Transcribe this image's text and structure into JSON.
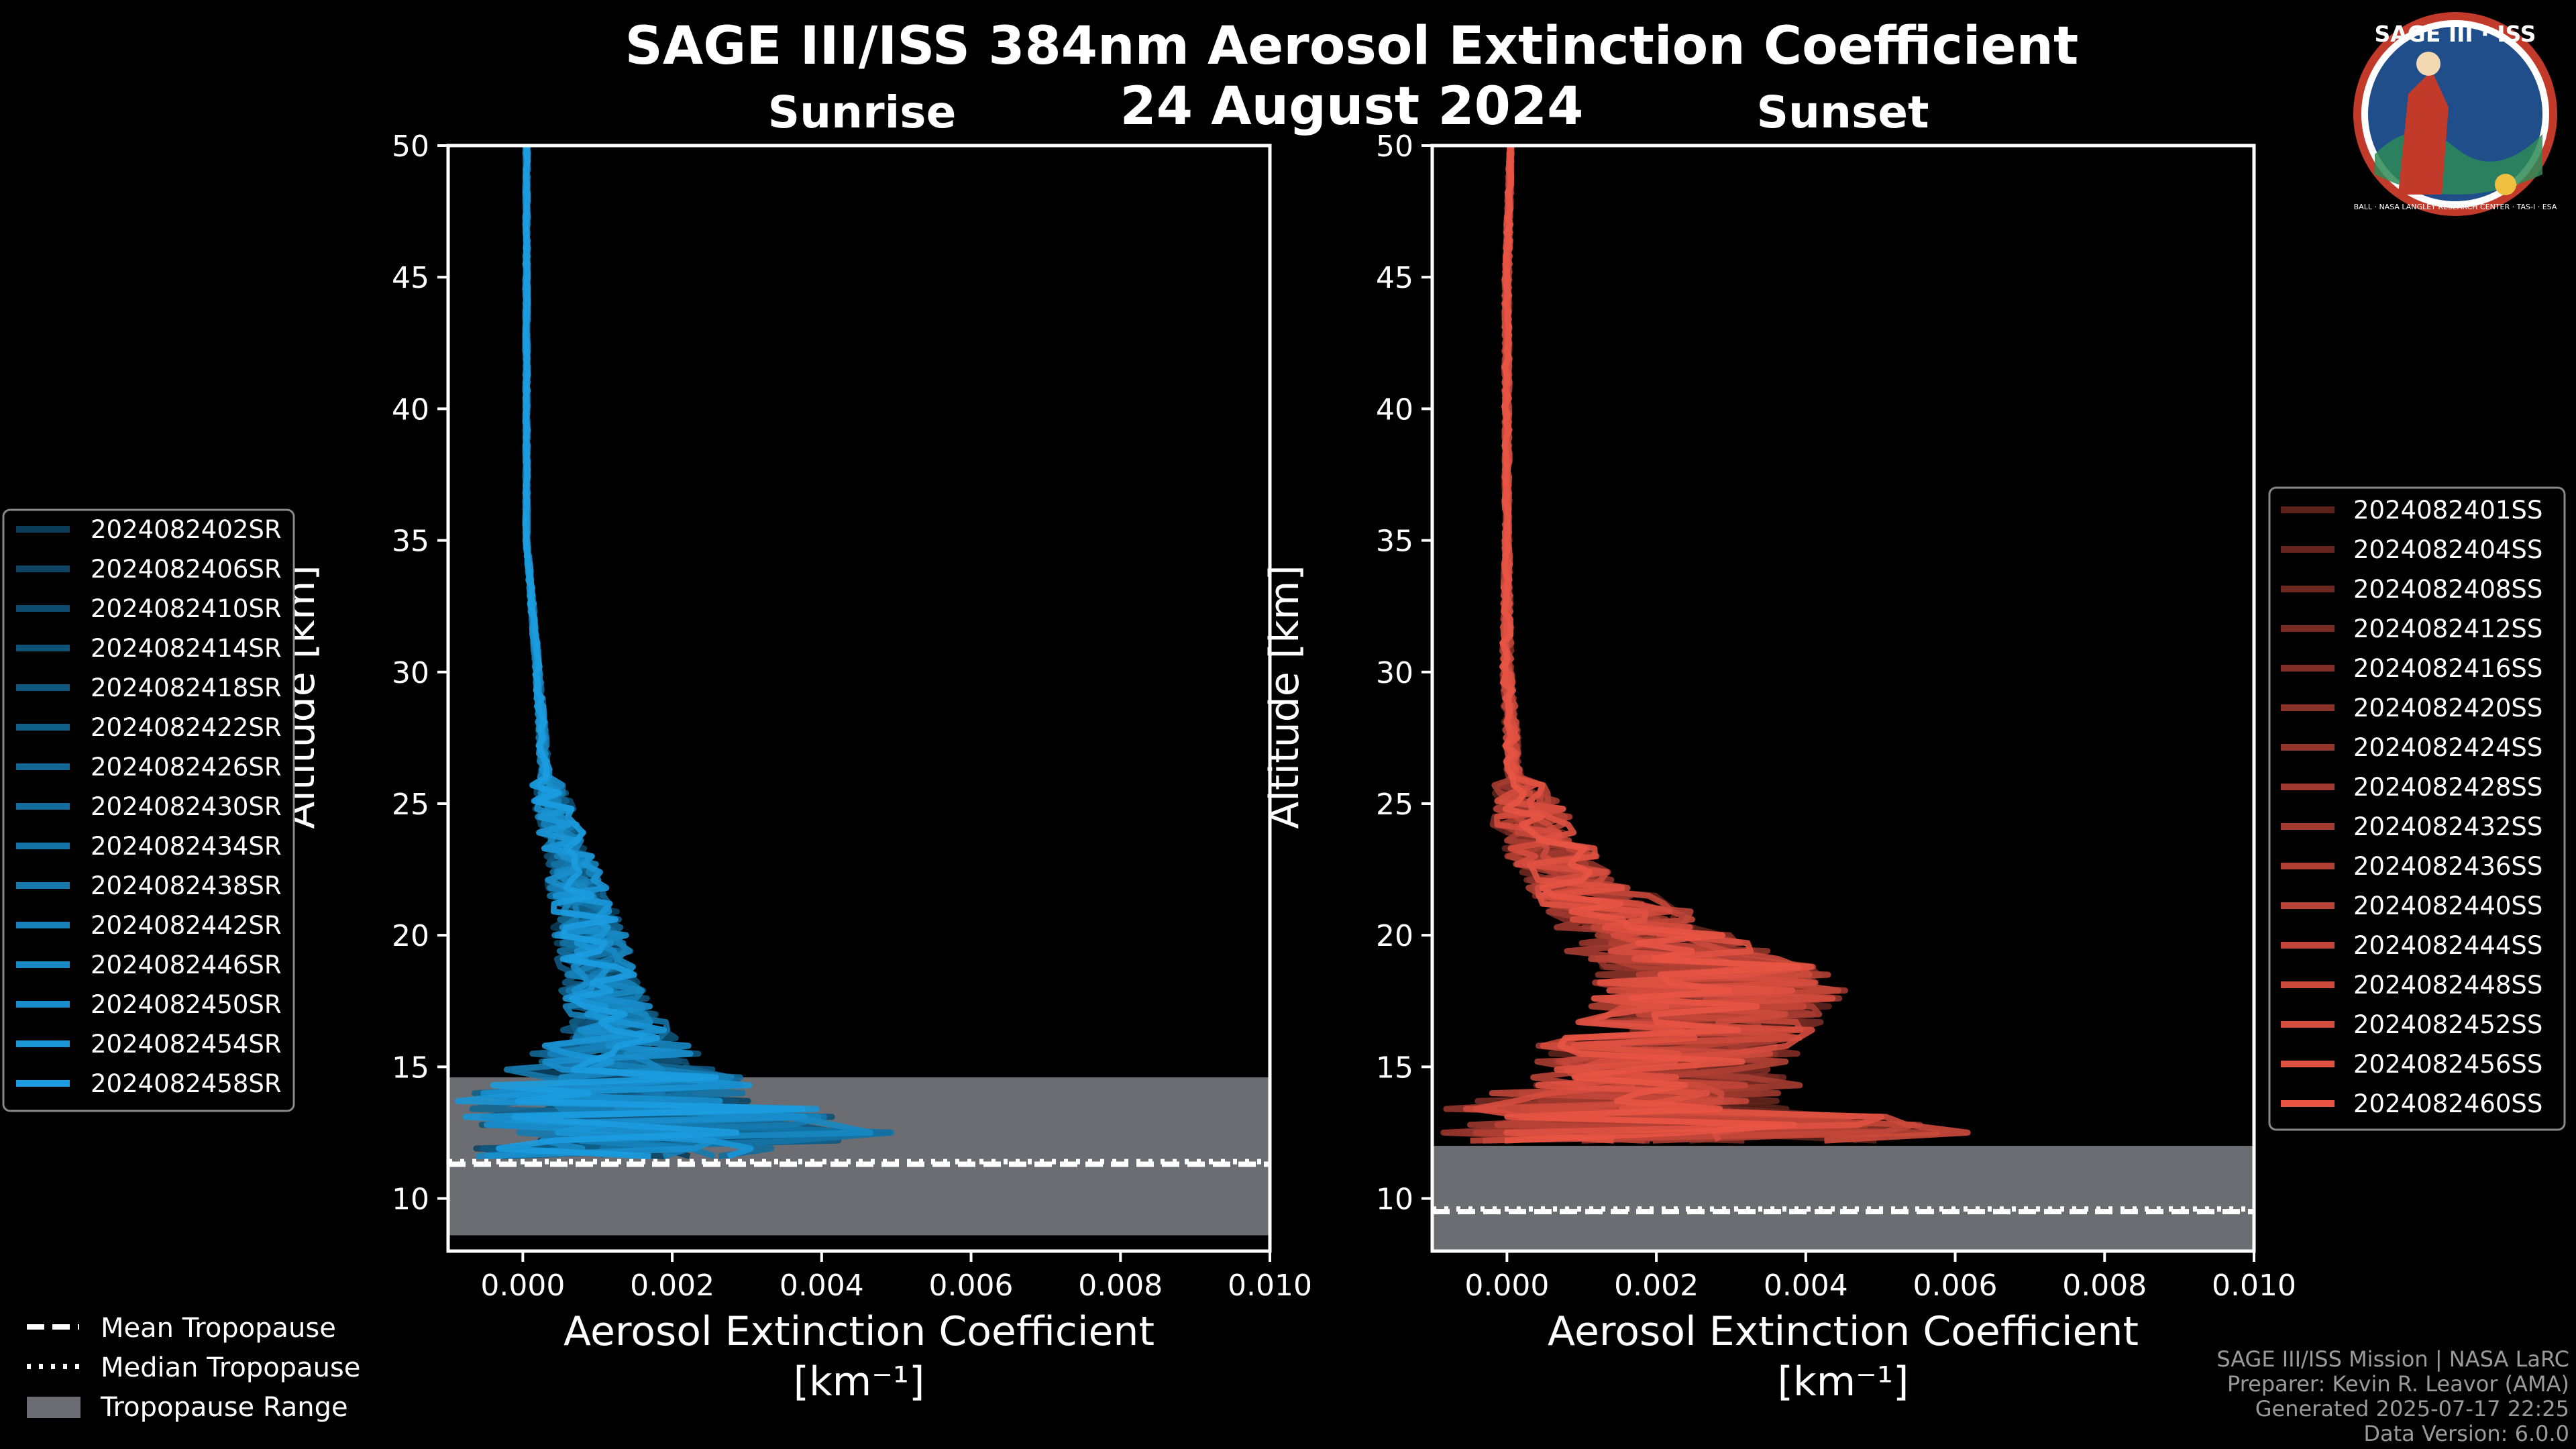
{
  "title": "SAGE III/ISS 384nm Aerosol Extinction Coefficient",
  "subtitle": "24 August 2024",
  "logo": {
    "text": "SAGE III · ISS",
    "ring_text": "BALL · NASA LANGLEY RESEARCH CENTER · TAS-I · ESA"
  },
  "credits": {
    "line1": "SAGE III/ISS Mission | NASA LaRC",
    "line2": "Preparer: Kevin R. Leavor (AMA)",
    "line3": "Generated 2025-07-17 22:25",
    "line4": "Data Version: 6.0.0"
  },
  "bottom_legend": {
    "mean": "Mean Tropopause",
    "median": "Median Tropopause",
    "range": "Tropopause Range"
  },
  "chart_data": [
    {
      "type": "line",
      "title": "Sunrise",
      "xlabel": "Aerosol Extinction Coefficient",
      "xlabel_unit": "[km⁻¹]",
      "ylabel": "Altitude [km]",
      "xlim": [
        -0.001,
        0.01
      ],
      "ylim": [
        8,
        50
      ],
      "xticks": [
        "0.000",
        "0.002",
        "0.004",
        "0.006",
        "0.008",
        "0.010"
      ],
      "xtick_values": [
        0,
        0.002,
        0.004,
        0.006,
        0.008,
        0.01
      ],
      "yticks": [
        10,
        15,
        20,
        25,
        30,
        35,
        40,
        45,
        50
      ],
      "color": "#1b9ce0",
      "tropopause": {
        "mean": 11.3,
        "median": 11.4,
        "range": [
          8.6,
          14.6
        ]
      },
      "envelope": {
        "alt": [
          50,
          45,
          40,
          35,
          30,
          28,
          26,
          24,
          22,
          20,
          18,
          17,
          16,
          15,
          14,
          13,
          12.5,
          12,
          11.6
        ],
        "left": [
          0.0,
          0.0,
          0.0,
          0.0,
          0.0001,
          0.0001,
          0.0001,
          0.0002,
          0.0003,
          0.0004,
          0.0005,
          0.0006,
          0.0004,
          -0.0002,
          -0.0009,
          -0.001,
          -0.001,
          -0.001,
          -0.0008
        ],
        "right": [
          0.0001,
          0.0001,
          0.0001,
          0.0001,
          0.0003,
          0.0004,
          0.0005,
          0.0008,
          0.0011,
          0.0014,
          0.0016,
          0.0018,
          0.0022,
          0.0026,
          0.0035,
          0.0045,
          0.005,
          0.0038,
          0.0028
        ]
      },
      "series": [
        {
          "name": "2024082402SR",
          "values": []
        },
        {
          "name": "2024082406SR",
          "values": []
        },
        {
          "name": "2024082410SR",
          "values": []
        },
        {
          "name": "2024082414SR",
          "values": []
        },
        {
          "name": "2024082418SR",
          "values": []
        },
        {
          "name": "2024082422SR",
          "values": []
        },
        {
          "name": "2024082426SR",
          "values": []
        },
        {
          "name": "2024082430SR",
          "values": []
        },
        {
          "name": "2024082434SR",
          "values": []
        },
        {
          "name": "2024082438SR",
          "values": []
        },
        {
          "name": "2024082442SR",
          "values": []
        },
        {
          "name": "2024082446SR",
          "values": []
        },
        {
          "name": "2024082450SR",
          "values": []
        },
        {
          "name": "2024082454SR",
          "values": []
        },
        {
          "name": "2024082458SR",
          "values": []
        }
      ],
      "legend_position": "left"
    },
    {
      "type": "line",
      "title": "Sunset",
      "xlabel": "Aerosol Extinction Coefficient",
      "xlabel_unit": "[km⁻¹]",
      "ylabel": "Altitude [km]",
      "xlim": [
        -0.001,
        0.01
      ],
      "ylim": [
        8,
        50
      ],
      "xticks": [
        "0.000",
        "0.002",
        "0.004",
        "0.006",
        "0.008",
        "0.010"
      ],
      "xtick_values": [
        0,
        0.002,
        0.004,
        0.006,
        0.008,
        0.01
      ],
      "yticks": [
        10,
        15,
        20,
        25,
        30,
        35,
        40,
        45,
        50
      ],
      "color": "#e85444",
      "tropopause": {
        "mean": 9.5,
        "median": 9.6,
        "range": [
          8,
          12
        ]
      },
      "envelope": {
        "alt": [
          50,
          45,
          40,
          35,
          30,
          28,
          26,
          24,
          22,
          21,
          20,
          19,
          18,
          17,
          16,
          15,
          14,
          13.5,
          13,
          12.5,
          12.2
        ],
        "left": [
          0.0,
          -0.0001,
          -0.0001,
          -0.0001,
          -0.0002,
          -0.0002,
          -0.0002,
          -0.0002,
          0.0002,
          0.0005,
          0.0006,
          0.0009,
          0.0012,
          0.001,
          0.0005,
          0.0001,
          -0.0003,
          -0.0008,
          -0.001,
          -0.001,
          -0.0006
        ],
        "right": [
          0.0001,
          0.0001,
          0.0001,
          0.0001,
          0.0002,
          0.0003,
          0.0004,
          0.001,
          0.0015,
          0.0025,
          0.003,
          0.004,
          0.0046,
          0.0044,
          0.004,
          0.0038,
          0.004,
          0.0042,
          0.0055,
          0.0063,
          0.005
        ]
      },
      "series": [
        {
          "name": "2024082401SS",
          "values": []
        },
        {
          "name": "2024082404SS",
          "values": []
        },
        {
          "name": "2024082408SS",
          "values": []
        },
        {
          "name": "2024082412SS",
          "values": []
        },
        {
          "name": "2024082416SS",
          "values": []
        },
        {
          "name": "2024082420SS",
          "values": []
        },
        {
          "name": "2024082424SS",
          "values": []
        },
        {
          "name": "2024082428SS",
          "values": []
        },
        {
          "name": "2024082432SS",
          "values": []
        },
        {
          "name": "2024082436SS",
          "values": []
        },
        {
          "name": "2024082440SS",
          "values": []
        },
        {
          "name": "2024082444SS",
          "values": []
        },
        {
          "name": "2024082448SS",
          "values": []
        },
        {
          "name": "2024082452SS",
          "values": []
        },
        {
          "name": "2024082456SS",
          "values": []
        },
        {
          "name": "2024082460SS",
          "values": []
        }
      ],
      "legend_position": "right"
    }
  ]
}
